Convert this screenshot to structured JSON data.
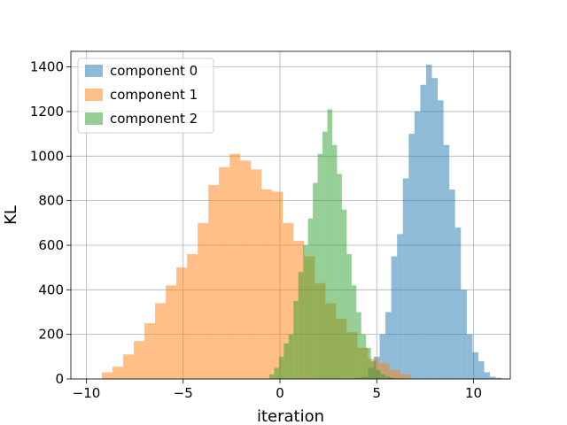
{
  "chart_data": {
    "type": "histogram",
    "title": "",
    "xlabel": "iteration",
    "ylabel": "KL",
    "xlim": [
      -10.8,
      11.9
    ],
    "ylim": [
      0,
      1470
    ],
    "xticks": [
      -10,
      -5,
      0,
      5,
      10
    ],
    "xtick_labels": [
      "−10",
      "−5",
      "0",
      "5",
      "10"
    ],
    "yticks": [
      0,
      200,
      400,
      600,
      800,
      1000,
      1200,
      1400
    ],
    "ytick_labels": [
      "0",
      "200",
      "400",
      "600",
      "800",
      "1000",
      "1200",
      "1400"
    ],
    "grid": true,
    "legend_position": "top-left",
    "alpha": 0.5,
    "series": [
      {
        "name": "component 0",
        "color": "#1f77b4",
        "bin_start": 3.95,
        "bin_width": 0.3,
        "values": [
          5,
          10,
          50,
          100,
          200,
          300,
          550,
          650,
          900,
          1100,
          1200,
          1320,
          1410,
          1350,
          1250,
          1050,
          850,
          680,
          400,
          200,
          120,
          80,
          30,
          10,
          5,
          2
        ]
      },
      {
        "name": "component 1",
        "color": "#ff7f0e",
        "bin_start": -9.2,
        "bin_width": 0.55,
        "values": [
          30,
          55,
          110,
          170,
          250,
          340,
          420,
          500,
          560,
          700,
          870,
          950,
          1010,
          980,
          940,
          850,
          840,
          700,
          620,
          550,
          430,
          340,
          270,
          210,
          140,
          90,
          70,
          40,
          20
        ]
      },
      {
        "name": "component 2",
        "color": "#2ca02c",
        "bin_start": -0.55,
        "bin_width": 0.25,
        "values": [
          20,
          50,
          100,
          160,
          200,
          350,
          480,
          600,
          720,
          880,
          1010,
          1110,
          1210,
          1050,
          920,
          760,
          560,
          420,
          300,
          200,
          140,
          80,
          40,
          20,
          10,
          5
        ]
      }
    ]
  }
}
